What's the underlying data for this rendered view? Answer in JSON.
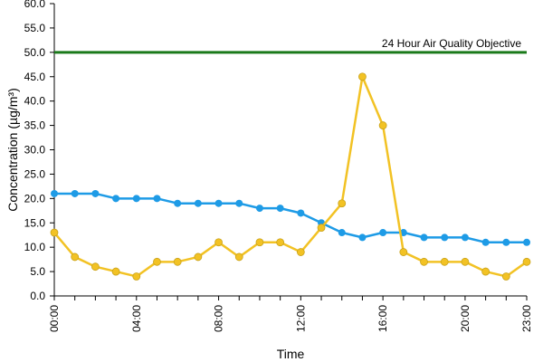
{
  "chart_data": {
    "type": "line",
    "xlabel": "Time",
    "ylabel": "Concentration (µg/m³)",
    "ylim": [
      0,
      60
    ],
    "yticks": [
      0,
      5,
      10,
      15,
      20,
      25,
      30,
      35,
      40,
      45,
      50,
      55,
      60
    ],
    "ytick_labels": [
      "0.0",
      "5.0",
      "10.0",
      "15.0",
      "20.0",
      "25.0",
      "30.0",
      "35.0",
      "40.0",
      "45.0",
      "50.0",
      "55.0",
      "60.0"
    ],
    "xlim": [
      0,
      23
    ],
    "x": [
      0,
      1,
      2,
      3,
      4,
      5,
      6,
      7,
      8,
      9,
      10,
      11,
      12,
      13,
      14,
      15,
      16,
      17,
      18,
      19,
      20,
      21,
      22,
      23
    ],
    "xticks": [
      0,
      4,
      8,
      12,
      16,
      20,
      23
    ],
    "xtick_labels": [
      "00:00",
      "04:00",
      "08:00",
      "12:00",
      "16:00",
      "20:00",
      "23:00"
    ],
    "grid": false,
    "series": [
      {
        "color": "#1e9be6",
        "values": [
          21,
          21,
          21,
          20,
          20,
          20,
          19,
          19,
          19,
          19,
          18,
          18,
          17,
          15,
          13,
          12,
          13,
          13,
          12,
          12,
          12,
          11,
          11,
          11
        ]
      },
      {
        "color": "#f2c224",
        "values": [
          13,
          8,
          6,
          5,
          4,
          7,
          7,
          8,
          11,
          8,
          11,
          11,
          9,
          14,
          19,
          45,
          35,
          9,
          7,
          7,
          7,
          5,
          4,
          7
        ]
      }
    ],
    "reference_lines": [
      {
        "value": 50,
        "label": "24 Hour Air Quality Objective",
        "color": "#1a7a1a"
      }
    ]
  }
}
